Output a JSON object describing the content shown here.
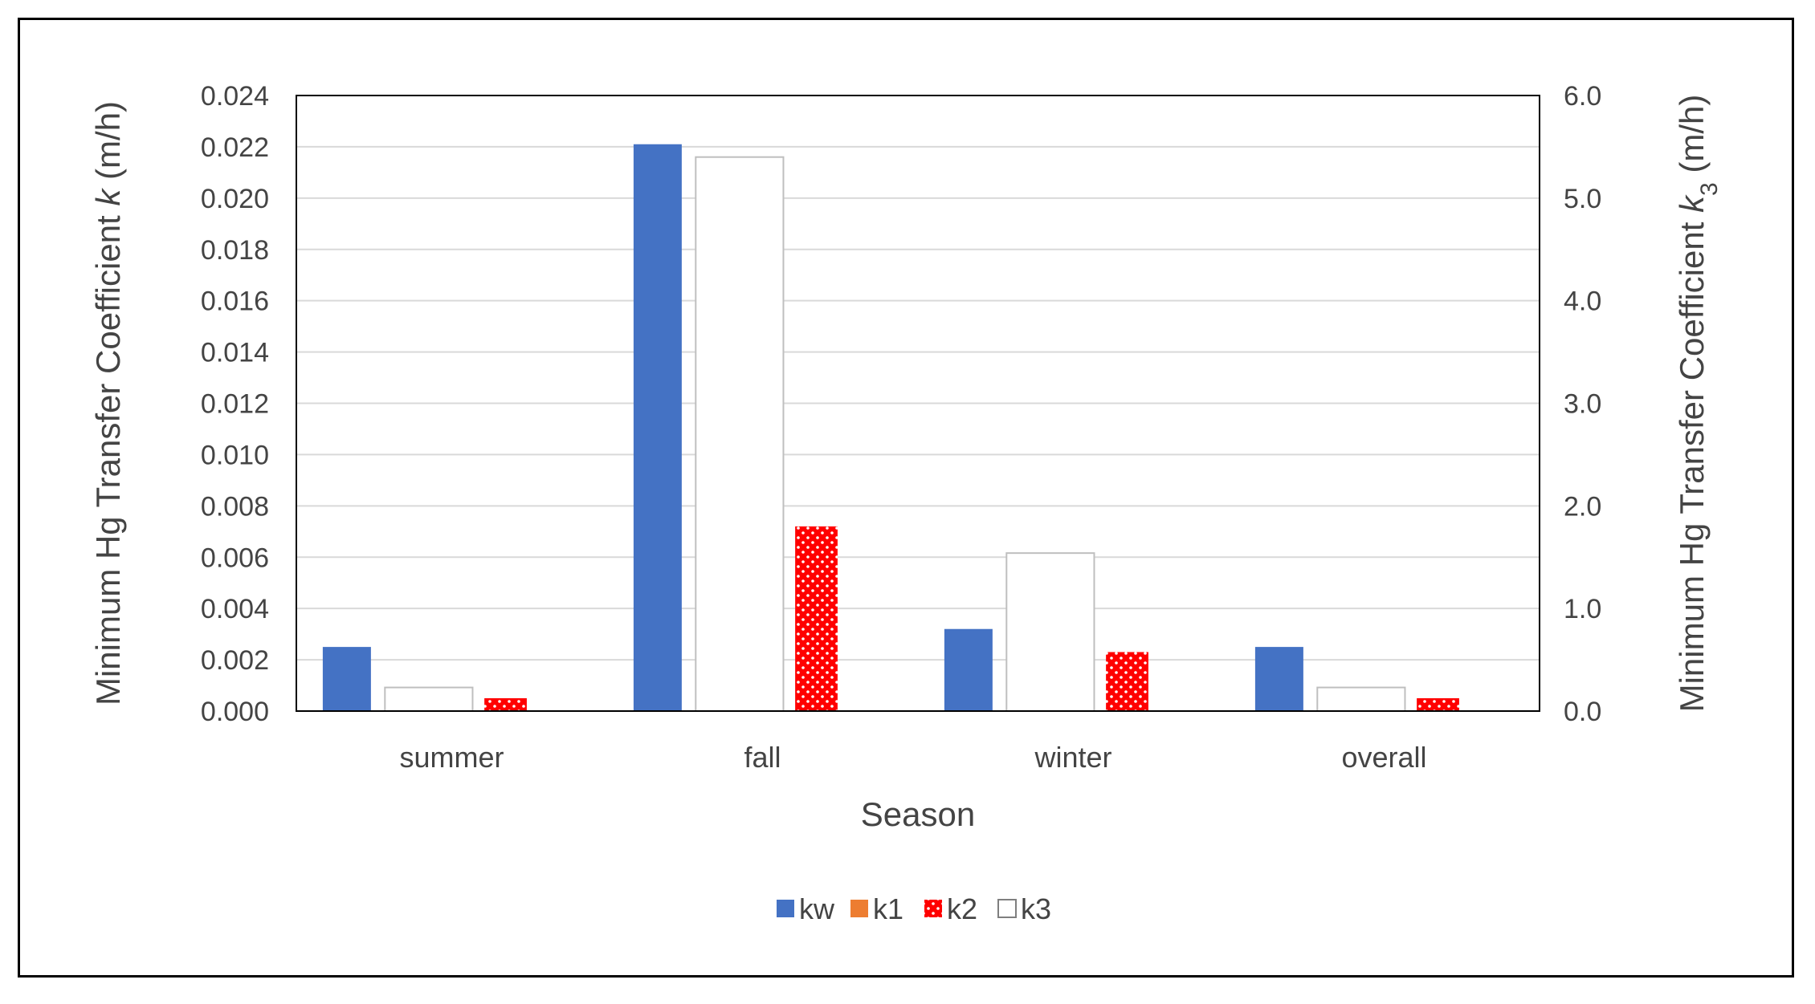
{
  "chart_data": {
    "type": "bar",
    "categories": [
      "summer",
      "fall",
      "winter",
      "overall"
    ],
    "xlabel": "Season",
    "ylabel": "Minimum Hg Transfer Coefficient k (m/h)",
    "ylabel_parts": {
      "before": "Minimum Hg Transfer Coefficient ",
      "var": "k",
      "after": " (m/h)"
    },
    "y2label": "Minimum Hg Transfer Coefficient k3 (m/h)",
    "y2label_parts": {
      "before": "Minimum Hg Transfer Coefficient ",
      "var": "k",
      "sub": "3",
      "after": " (m/h)"
    },
    "ylim": [
      0,
      0.024
    ],
    "y2lim": [
      0,
      6.0
    ],
    "yticks": [
      "0.000",
      "0.002",
      "0.004",
      "0.006",
      "0.008",
      "0.010",
      "0.012",
      "0.014",
      "0.016",
      "0.018",
      "0.020",
      "0.022",
      "0.024"
    ],
    "y2ticks": [
      "0.0",
      "1.0",
      "2.0",
      "3.0",
      "4.0",
      "5.0",
      "6.0"
    ],
    "grid": true,
    "legend_position": "bottom",
    "series": [
      {
        "name": "kw",
        "axis": "primary",
        "values": [
          0.0025,
          0.0221,
          0.0032,
          0.0025
        ],
        "color": "#4472C4",
        "pattern": "solid"
      },
      {
        "name": "k1",
        "axis": "primary",
        "values": [
          0,
          0,
          0,
          0
        ],
        "color": "#ED7D31",
        "pattern": "solid"
      },
      {
        "name": "k3",
        "axis": "secondary",
        "values": [
          0.23,
          5.4,
          1.54,
          0.23
        ],
        "color": "#FFFFFF",
        "pattern": "outline"
      },
      {
        "name": "k2",
        "axis": "primary",
        "values": [
          0.0005,
          0.0072,
          0.0023,
          0.0005
        ],
        "color": "#FF0000",
        "pattern": "dotted"
      }
    ],
    "legend_order": [
      "kw",
      "k1",
      "k2",
      "k3"
    ]
  }
}
